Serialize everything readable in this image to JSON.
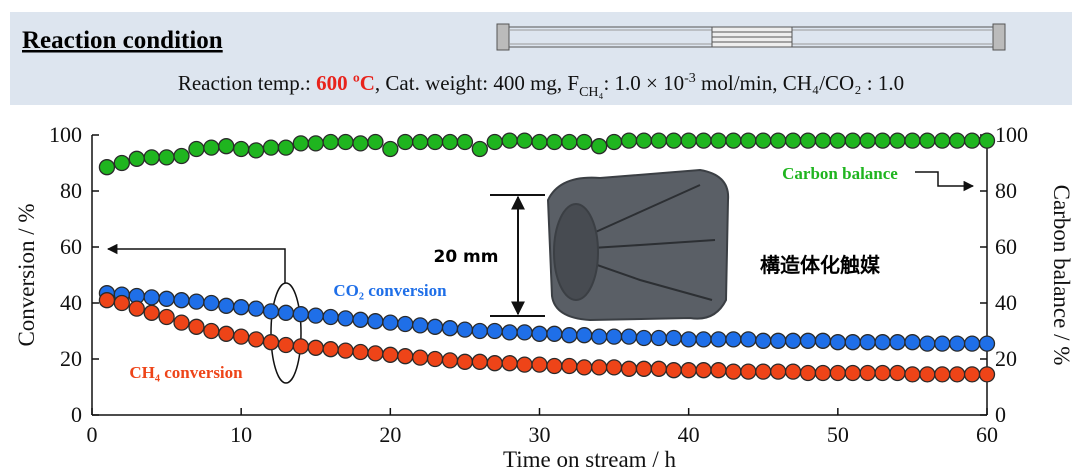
{
  "header": {
    "title": "Reaction condition",
    "condition": [
      "Reaction temp.: ",
      "600 ºC",
      ",  Cat. weight: 400 mg, F",
      "CH₄",
      ": 1.0 × 10",
      "-3",
      " mol/min, CH₄/CO₂ : 1.0"
    ]
  },
  "chart_data": {
    "type": "scatter",
    "xlabel": "Time on stream / h",
    "ylabel": "Conversion / %",
    "y2label": "Carbon balance / %",
    "xlim": [
      0,
      60
    ],
    "xticks": [
      0,
      10,
      20,
      30,
      40,
      50,
      60
    ],
    "ylim": [
      0,
      100
    ],
    "yticks": [
      0,
      20,
      40,
      60,
      80,
      100
    ],
    "y2lim": [
      0,
      100
    ],
    "y2ticks": [
      0,
      20,
      40,
      60,
      80,
      100
    ],
    "x": [
      1,
      2,
      3,
      4,
      5,
      6,
      7,
      8,
      9,
      10,
      11,
      12,
      13,
      14,
      15,
      16,
      17,
      18,
      19,
      20,
      21,
      22,
      23,
      24,
      25,
      26,
      27,
      28,
      29,
      30,
      31,
      32,
      33,
      34,
      35,
      36,
      37,
      38,
      39,
      40,
      41,
      42,
      43,
      44,
      45,
      46,
      47,
      48,
      49,
      50,
      51,
      52,
      53,
      54,
      55,
      56,
      57,
      58,
      59,
      60
    ],
    "series": [
      {
        "name": "Carbon balance",
        "color": "#1fb51f",
        "axis": "y2",
        "values": [
          88.5,
          90,
          91.5,
          92,
          92,
          92.5,
          95,
          95.5,
          96,
          95,
          94.5,
          95.5,
          95.5,
          97,
          97,
          97.5,
          97.5,
          97,
          97.5,
          95,
          97.5,
          97.5,
          97.5,
          97.5,
          97.5,
          95,
          97.5,
          98,
          98,
          97.5,
          97.5,
          97.5,
          97.5,
          96,
          97.5,
          98,
          98,
          98,
          98,
          98,
          98,
          98,
          98,
          98,
          98,
          98,
          98,
          98,
          98,
          98,
          98,
          98,
          98,
          98,
          98,
          98,
          98,
          98,
          98,
          98
        ]
      },
      {
        "name": "CO₂ conversion",
        "color": "#1f6fe8",
        "values": [
          43.5,
          43,
          42.5,
          42,
          41.5,
          41,
          40.5,
          40,
          39,
          38.5,
          38,
          37,
          36.5,
          36,
          35.5,
          35,
          34.5,
          34,
          33.5,
          33,
          32.5,
          32,
          31.5,
          31,
          30.5,
          30,
          30,
          29.5,
          29.5,
          29,
          29,
          28.5,
          28.5,
          28,
          28,
          28,
          27.5,
          27.5,
          27.5,
          27,
          27,
          27,
          27,
          27,
          26.5,
          26.5,
          26.5,
          26.5,
          26.5,
          26,
          26,
          26,
          26,
          26,
          26,
          25.5,
          25.5,
          25.5,
          25.5,
          25.5
        ]
      },
      {
        "name": "CH₄ conversion",
        "color": "#ee4418",
        "values": [
          41,
          40,
          38,
          36.5,
          35,
          33,
          31.5,
          30,
          29,
          28,
          27,
          26,
          25,
          24.5,
          24,
          23.5,
          23,
          22.5,
          22,
          21.5,
          21,
          20.5,
          20,
          19.5,
          19,
          19,
          18.5,
          18.5,
          18,
          18,
          17.5,
          17.5,
          17,
          17,
          17,
          16.5,
          16.5,
          16.5,
          16,
          16,
          16,
          16,
          15.5,
          15.5,
          15.5,
          15.5,
          15.5,
          15,
          15,
          15,
          15,
          15,
          15,
          15,
          14.5,
          14.5,
          14.5,
          14.5,
          14.5,
          14.5
        ]
      }
    ],
    "annotations": {
      "dimension": "20 mm",
      "catalyst": "構造体化触媒"
    }
  }
}
